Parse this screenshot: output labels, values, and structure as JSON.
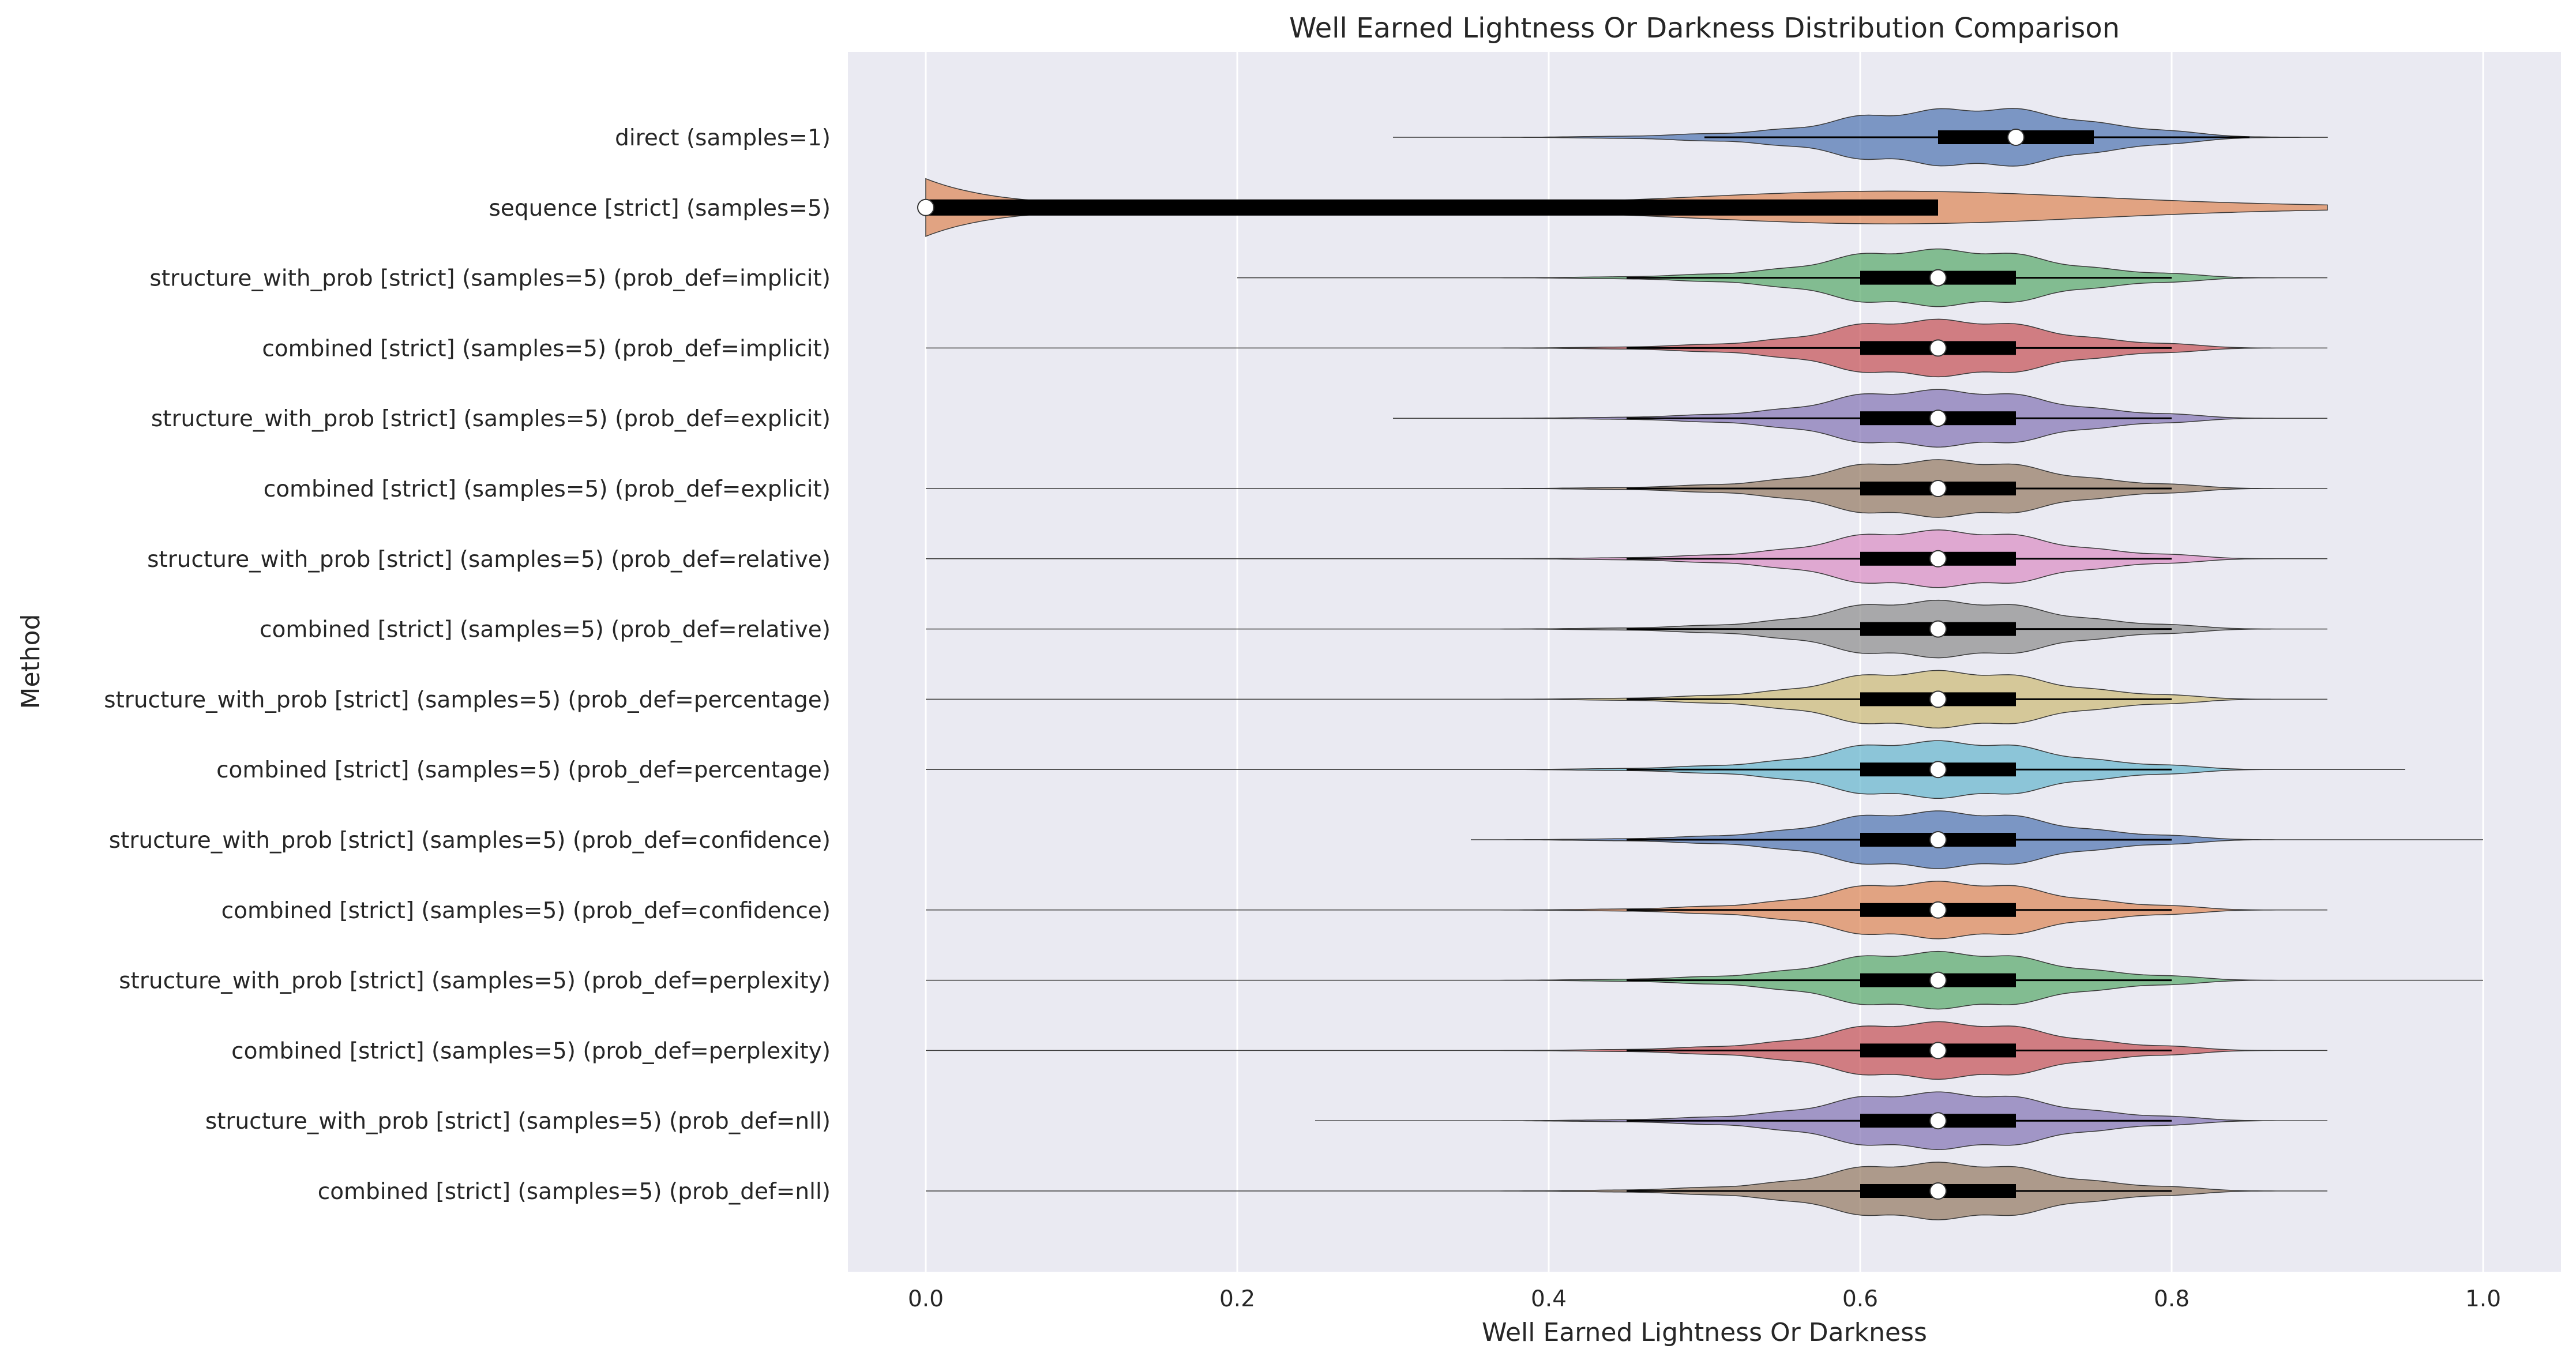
{
  "chart_data": {
    "type": "violin",
    "orientation": "horizontal",
    "title": "Well Earned Lightness Or Darkness Distribution Comparison",
    "xlabel": "Well Earned Lightness Or Darkness",
    "ylabel": "Method",
    "xlim": [
      -0.05,
      1.05
    ],
    "xticks": [
      "0.0",
      "0.2",
      "0.4",
      "0.6",
      "0.8",
      "1.0"
    ],
    "grid": true,
    "background_color": "#eaeaf2",
    "grid_color": "#ffffff",
    "series": [
      {
        "label": "direct (samples=1)",
        "color": "#4c72b0",
        "min": 0.3,
        "max": 0.9,
        "q1": 0.65,
        "median": 0.7,
        "q3": 0.75,
        "whisker_low": 0.5,
        "whisker_high": 0.85
      },
      {
        "label": "sequence [strict] (samples=5)",
        "color": "#dd8452",
        "min": 0.0,
        "max": 0.9,
        "q1": 0.0,
        "median": 0.0,
        "q3": 0.65,
        "whisker_low": 0.0,
        "whisker_high": 0.65
      },
      {
        "label": "structure_with_prob [strict] (samples=5) (prob_def=implicit)",
        "color": "#55a868",
        "min": 0.2,
        "max": 0.9,
        "q1": 0.6,
        "median": 0.65,
        "q3": 0.7,
        "whisker_low": 0.45,
        "whisker_high": 0.8
      },
      {
        "label": "combined [strict] (samples=5) (prob_def=implicit)",
        "color": "#c44e52",
        "min": 0.0,
        "max": 0.9,
        "q1": 0.6,
        "median": 0.65,
        "q3": 0.7,
        "whisker_low": 0.45,
        "whisker_high": 0.8
      },
      {
        "label": "structure_with_prob [strict] (samples=5) (prob_def=explicit)",
        "color": "#8172b3",
        "min": 0.3,
        "max": 0.9,
        "q1": 0.6,
        "median": 0.65,
        "q3": 0.7,
        "whisker_low": 0.45,
        "whisker_high": 0.8
      },
      {
        "label": "combined [strict] (samples=5) (prob_def=explicit)",
        "color": "#937860",
        "min": 0.0,
        "max": 0.9,
        "q1": 0.6,
        "median": 0.65,
        "q3": 0.7,
        "whisker_low": 0.45,
        "whisker_high": 0.8
      },
      {
        "label": "structure_with_prob [strict] (samples=5) (prob_def=relative)",
        "color": "#da8bc3",
        "min": 0.0,
        "max": 0.9,
        "q1": 0.6,
        "median": 0.65,
        "q3": 0.7,
        "whisker_low": 0.45,
        "whisker_high": 0.8
      },
      {
        "label": "combined [strict] (samples=5) (prob_def=relative)",
        "color": "#8c8c8c",
        "min": 0.0,
        "max": 0.9,
        "q1": 0.6,
        "median": 0.65,
        "q3": 0.7,
        "whisker_low": 0.45,
        "whisker_high": 0.8
      },
      {
        "label": "structure_with_prob [strict] (samples=5) (prob_def=percentage)",
        "color": "#ccb974",
        "min": 0.0,
        "max": 0.9,
        "q1": 0.6,
        "median": 0.65,
        "q3": 0.7,
        "whisker_low": 0.45,
        "whisker_high": 0.8
      },
      {
        "label": "combined [strict] (samples=5) (prob_def=percentage)",
        "color": "#64b5cd",
        "min": 0.0,
        "max": 0.95,
        "q1": 0.6,
        "median": 0.65,
        "q3": 0.7,
        "whisker_low": 0.45,
        "whisker_high": 0.8
      },
      {
        "label": "structure_with_prob [strict] (samples=5) (prob_def=confidence)",
        "color": "#4c72b0",
        "min": 0.35,
        "max": 1.0,
        "q1": 0.6,
        "median": 0.65,
        "q3": 0.7,
        "whisker_low": 0.45,
        "whisker_high": 0.8
      },
      {
        "label": "combined [strict] (samples=5) (prob_def=confidence)",
        "color": "#dd8452",
        "min": 0.0,
        "max": 0.9,
        "q1": 0.6,
        "median": 0.65,
        "q3": 0.7,
        "whisker_low": 0.45,
        "whisker_high": 0.8
      },
      {
        "label": "structure_with_prob [strict] (samples=5) (prob_def=perplexity)",
        "color": "#55a868",
        "min": 0.0,
        "max": 1.0,
        "q1": 0.6,
        "median": 0.65,
        "q3": 0.7,
        "whisker_low": 0.45,
        "whisker_high": 0.8
      },
      {
        "label": "combined [strict] (samples=5) (prob_def=perplexity)",
        "color": "#c44e52",
        "min": 0.0,
        "max": 0.9,
        "q1": 0.6,
        "median": 0.65,
        "q3": 0.7,
        "whisker_low": 0.45,
        "whisker_high": 0.8
      },
      {
        "label": "structure_with_prob [strict] (samples=5) (prob_def=nll)",
        "color": "#8172b3",
        "min": 0.25,
        "max": 0.9,
        "q1": 0.6,
        "median": 0.65,
        "q3": 0.7,
        "whisker_low": 0.45,
        "whisker_high": 0.8
      },
      {
        "label": "combined [strict] (samples=5) (prob_def=nll)",
        "color": "#937860",
        "min": 0.0,
        "max": 0.9,
        "q1": 0.6,
        "median": 0.65,
        "q3": 0.7,
        "whisker_low": 0.45,
        "whisker_high": 0.8
      }
    ]
  }
}
